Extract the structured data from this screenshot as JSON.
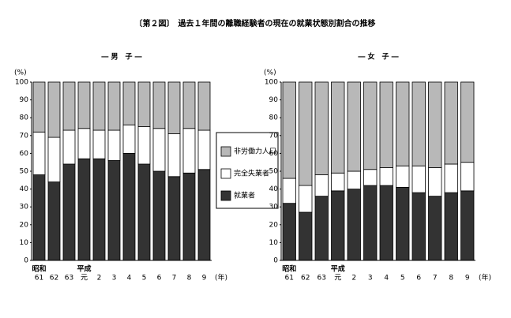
{
  "title": "〔第２図〕　過去１年間の離職経験者の現在の就業状態別割合の推移",
  "chart_data": [
    {
      "type": "bar",
      "stacked": true,
      "title": "― 男　子 ―",
      "ylabel": "(%)",
      "xlabel": "(年)",
      "categories": [
        "61",
        "62",
        "63",
        "元",
        "2",
        "3",
        "4",
        "5",
        "6",
        "7",
        "8",
        "9"
      ],
      "era_labels": [
        "昭和",
        null,
        null,
        "平成",
        null,
        null,
        null,
        null,
        null,
        null,
        null,
        null
      ],
      "series": [
        {
          "name": "就業者",
          "color": "#333333",
          "values": [
            48,
            44,
            54,
            57,
            57,
            56,
            60,
            54,
            50,
            47,
            49,
            51
          ]
        },
        {
          "name": "完全失業者",
          "color": "#ffffff",
          "values": [
            24,
            25,
            19,
            17,
            16,
            17,
            16,
            21,
            24,
            24,
            25,
            22
          ]
        },
        {
          "name": "非労働力人口",
          "color": "#b8b8b8",
          "values": [
            28,
            31,
            27,
            26,
            27,
            27,
            24,
            25,
            26,
            29,
            26,
            27
          ]
        }
      ],
      "ylim": [
        0,
        100
      ],
      "yticks": [
        0,
        10,
        20,
        30,
        40,
        50,
        60,
        70,
        80,
        90,
        100
      ]
    },
    {
      "type": "bar",
      "stacked": true,
      "title": "― 女　子 ―",
      "ylabel": "(%)",
      "xlabel": "(年)",
      "categories": [
        "61",
        "62",
        "63",
        "元",
        "2",
        "3",
        "4",
        "5",
        "6",
        "7",
        "8",
        "9"
      ],
      "era_labels": [
        "昭和",
        null,
        null,
        "平成",
        null,
        null,
        null,
        null,
        null,
        null,
        null,
        null
      ],
      "series": [
        {
          "name": "就業者",
          "color": "#333333",
          "values": [
            32,
            27,
            36,
            39,
            40,
            42,
            42,
            41,
            38,
            36,
            38,
            39
          ]
        },
        {
          "name": "完全失業者",
          "color": "#ffffff",
          "values": [
            14,
            15,
            12,
            10,
            10,
            9,
            10,
            12,
            15,
            16,
            16,
            16
          ]
        },
        {
          "name": "非労働力人口",
          "color": "#b8b8b8",
          "values": [
            54,
            58,
            52,
            51,
            50,
            49,
            48,
            47,
            47,
            48,
            46,
            45
          ]
        }
      ],
      "ylim": [
        0,
        100
      ],
      "yticks": [
        0,
        10,
        20,
        30,
        40,
        50,
        60,
        70,
        80,
        90,
        100
      ]
    }
  ]
}
